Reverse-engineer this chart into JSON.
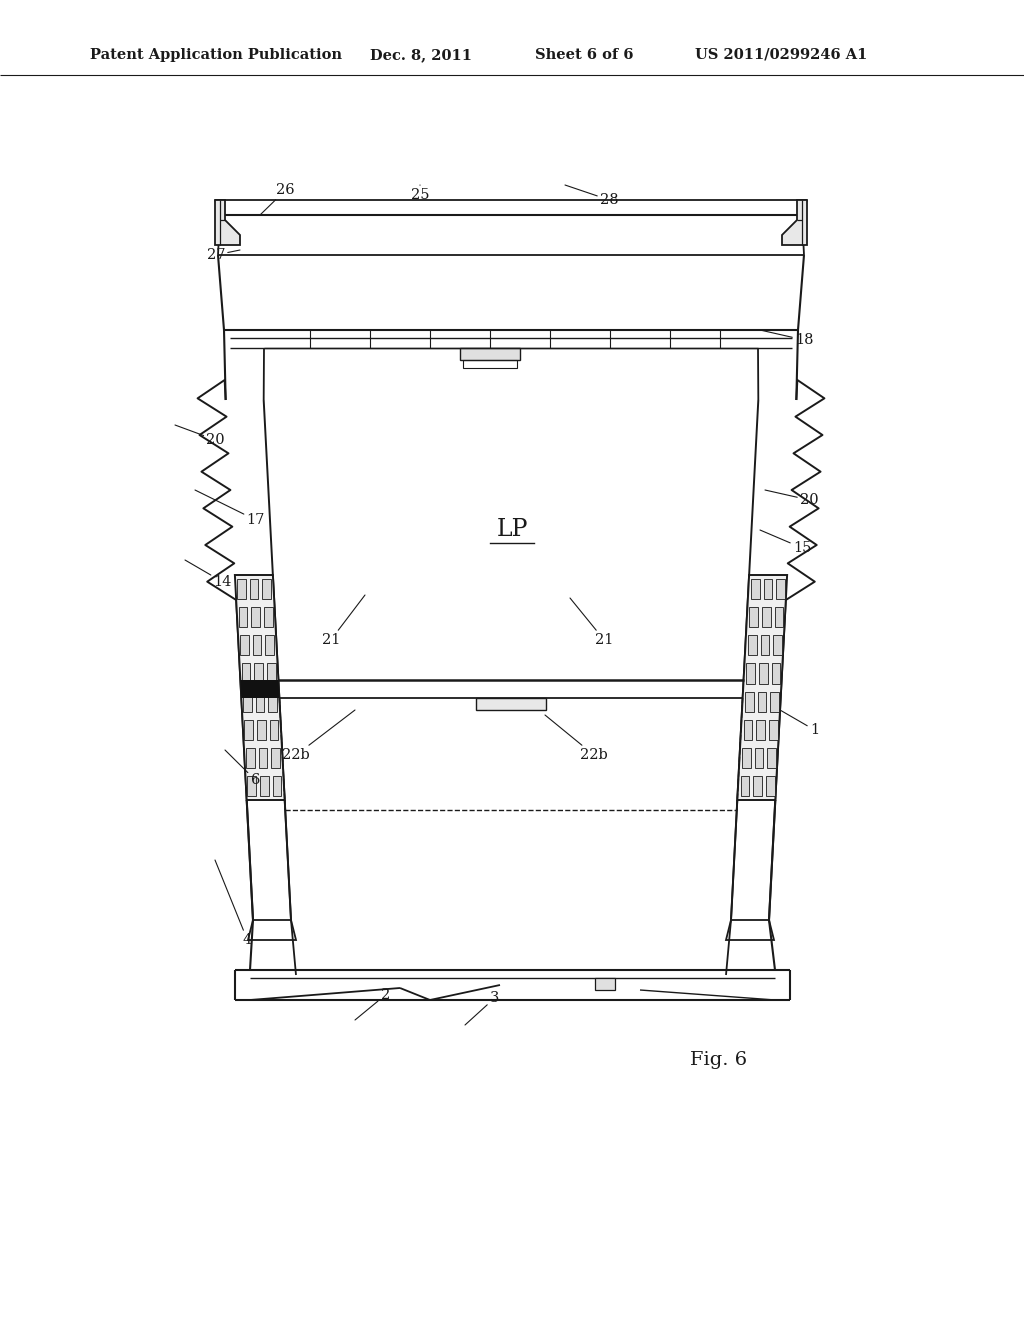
{
  "bg_color": "#ffffff",
  "line_color": "#1a1a1a",
  "header_text": "Patent Application Publication",
  "header_date": "Dec. 8, 2011",
  "header_sheet": "Sheet 6 of 6",
  "header_patent": "US 2011/0299246 A1",
  "fig_label": "Fig. 6",
  "lp_label": "LP"
}
